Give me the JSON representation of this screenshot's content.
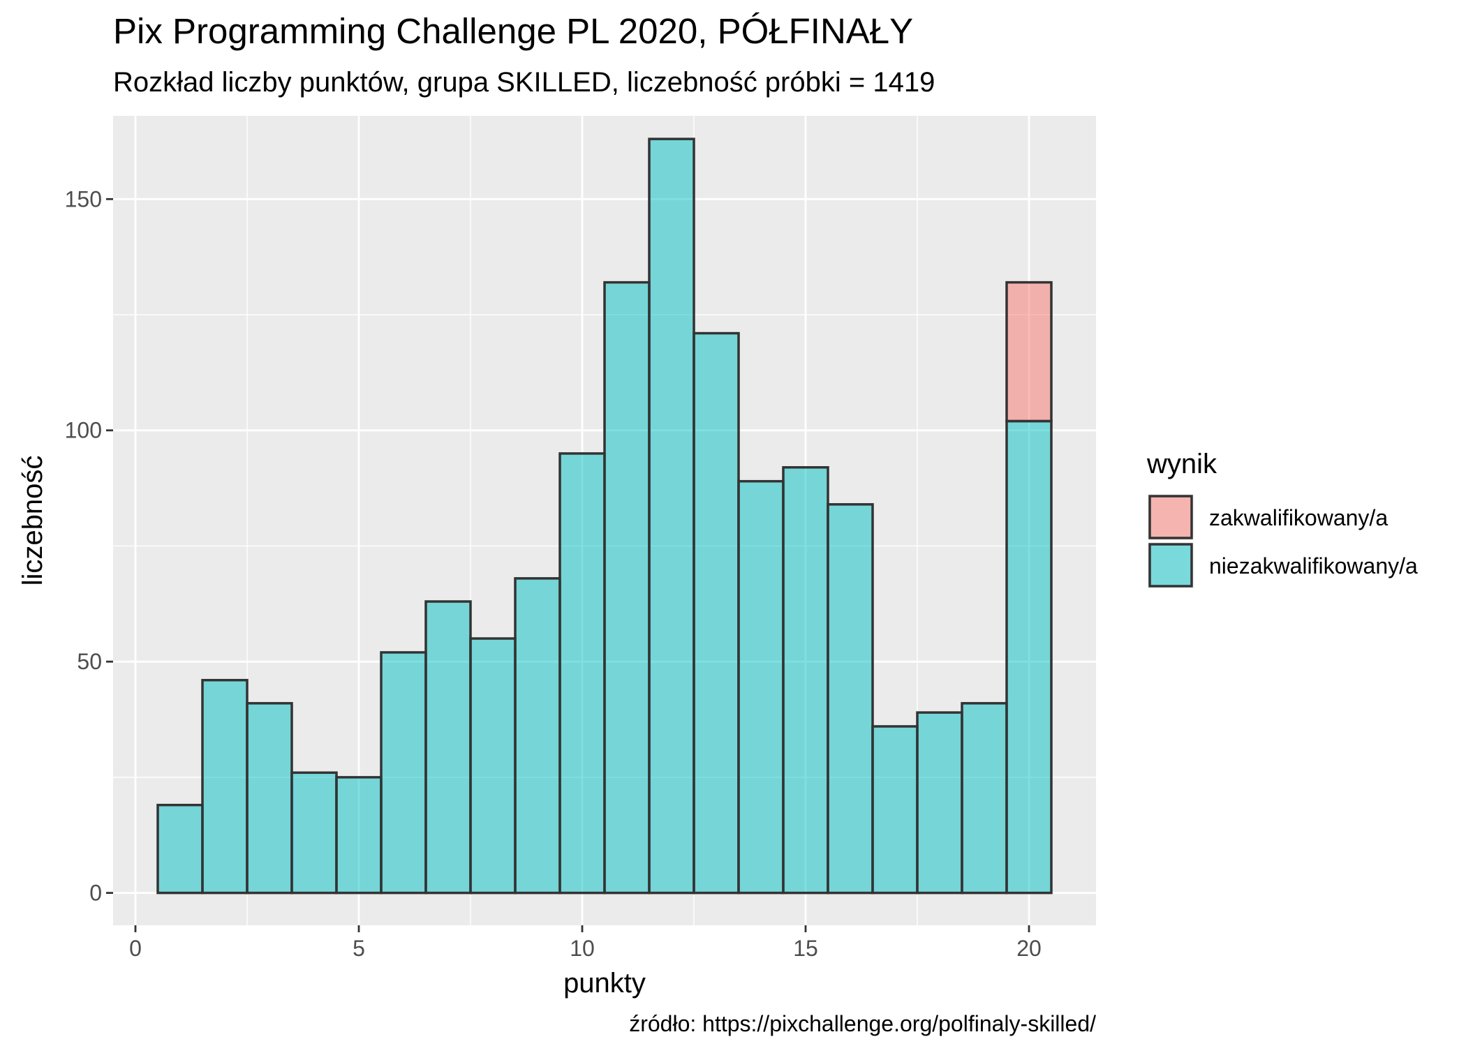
{
  "chart_data": {
    "type": "bar",
    "title": "Pix Programming Challenge PL 2020, PÓŁFINAŁY",
    "subtitle": "Rozkład liczby punktów, grupa SKILLED, liczebność próbki = 1419",
    "xlabel": "punkty",
    "ylabel": "liczebność",
    "caption": "źródło: https://pixchallenge.org/polfinaly-skilled/",
    "xlim": [
      -0.5,
      21.5
    ],
    "ylim": [
      -7,
      168
    ],
    "x_ticks": [
      0,
      5,
      10,
      15,
      20
    ],
    "x_tick_labels": [
      "0",
      "5",
      "10",
      "15",
      "20"
    ],
    "y_ticks": [
      0,
      50,
      100,
      150
    ],
    "y_tick_labels": [
      "0",
      "50",
      "100",
      "150"
    ],
    "grid": true,
    "legend_position": "right",
    "legend_title": "wynik",
    "x": [
      1,
      2,
      3,
      4,
      5,
      6,
      7,
      8,
      9,
      10,
      11,
      12,
      13,
      14,
      15,
      16,
      17,
      18,
      19,
      20
    ],
    "bin_width": 1,
    "stacked": true,
    "series": [
      {
        "name": "niezakwalifikowany/a",
        "color": "#00BFC4",
        "values": [
          19,
          46,
          41,
          26,
          25,
          52,
          63,
          55,
          68,
          95,
          132,
          163,
          121,
          89,
          92,
          84,
          36,
          39,
          41,
          102
        ]
      },
      {
        "name": "zakwalifikowany/a",
        "color": "#F8766D",
        "values": [
          0,
          0,
          0,
          0,
          0,
          0,
          0,
          0,
          0,
          0,
          0,
          0,
          0,
          0,
          0,
          0,
          0,
          0,
          0,
          30
        ]
      }
    ],
    "legend_order": [
      "zakwalifikowany/a",
      "niezakwalifikowany/a"
    ]
  }
}
